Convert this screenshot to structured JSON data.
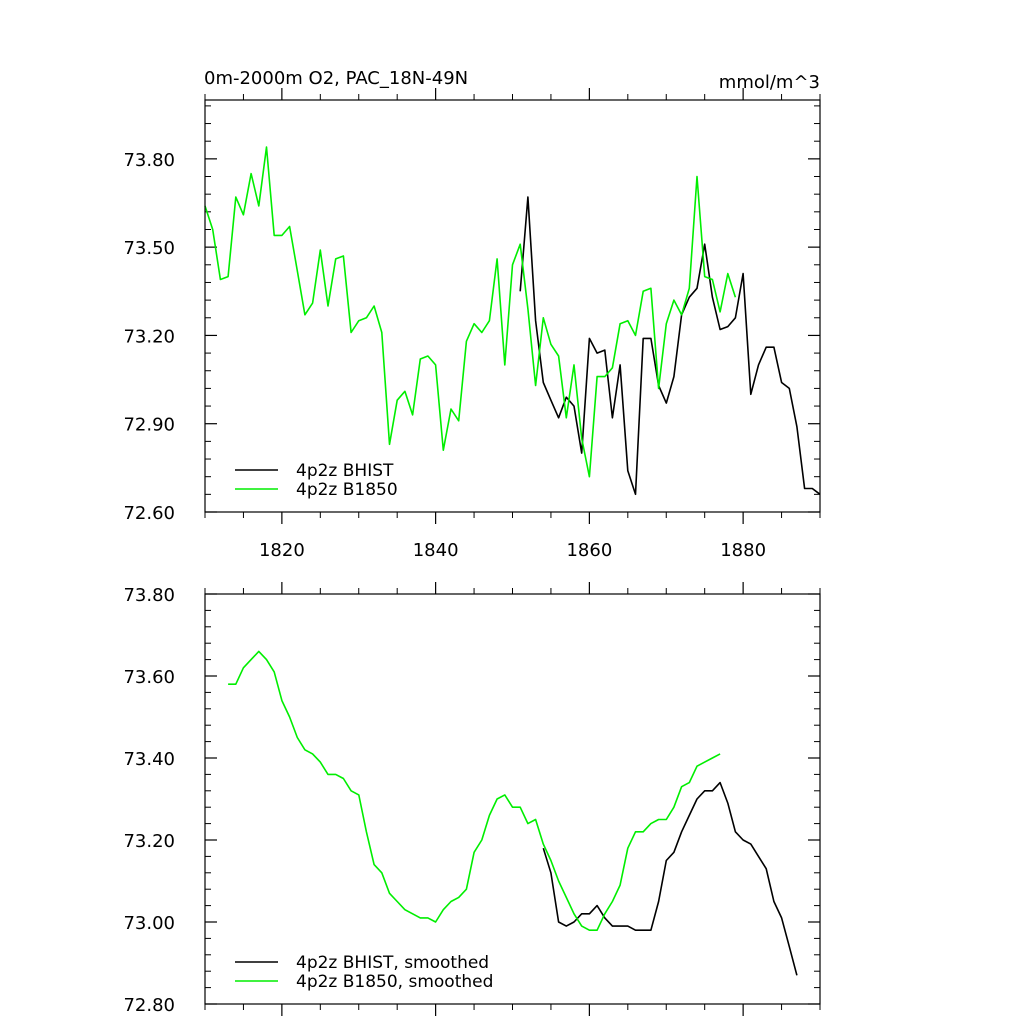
{
  "chart_data": [
    {
      "type": "line",
      "title_left": "0m-2000m O2, PAC_18N-49N",
      "title_right": "mmol/m^3",
      "xlim": [
        1810,
        1890
      ],
      "ylim": [
        72.6,
        74.0
      ],
      "yticks": [
        72.6,
        72.9,
        73.2,
        73.5,
        73.8
      ],
      "ytick_labels": [
        "72.60",
        "72.90",
        "73.20",
        "73.50",
        "73.80"
      ],
      "xticks": [
        1820,
        1840,
        1860,
        1880
      ],
      "xtick_labels": [
        "1820",
        "1840",
        "1860",
        "1880"
      ],
      "legend_position": "bottom-left",
      "series": [
        {
          "name": "4p2z BHIST",
          "color": "#000000",
          "x": [
            1851,
            1852,
            1853,
            1854,
            1855,
            1856,
            1857,
            1858,
            1859,
            1860,
            1861,
            1862,
            1863,
            1864,
            1865,
            1866,
            1867,
            1868,
            1869,
            1870,
            1871,
            1872,
            1873,
            1874,
            1875,
            1876,
            1877,
            1878,
            1879,
            1880,
            1881,
            1882,
            1883,
            1884,
            1885,
            1886,
            1887,
            1888,
            1889,
            1890
          ],
          "values": [
            73.35,
            73.67,
            73.25,
            73.04,
            72.98,
            72.92,
            72.99,
            72.96,
            72.8,
            73.19,
            73.14,
            73.15,
            72.92,
            73.1,
            72.74,
            72.66,
            73.19,
            73.19,
            73.03,
            72.97,
            73.06,
            73.27,
            73.33,
            73.36,
            73.51,
            73.33,
            73.22,
            73.23,
            73.26,
            73.41,
            73.0,
            73.1,
            73.16,
            73.16,
            73.04,
            73.02,
            72.89,
            72.68,
            72.68,
            72.66
          ]
        },
        {
          "name": "4p2z B1850",
          "color": "#00ee00",
          "x": [
            1810,
            1811,
            1812,
            1813,
            1814,
            1815,
            1816,
            1817,
            1818,
            1819,
            1820,
            1821,
            1822,
            1823,
            1824,
            1825,
            1826,
            1827,
            1828,
            1829,
            1830,
            1831,
            1832,
            1833,
            1834,
            1835,
            1836,
            1837,
            1838,
            1839,
            1840,
            1841,
            1842,
            1843,
            1844,
            1845,
            1846,
            1847,
            1848,
            1849,
            1850,
            1851,
            1852,
            1853,
            1854,
            1855,
            1856,
            1857,
            1858,
            1859,
            1860,
            1861,
            1862,
            1863,
            1864,
            1865,
            1866,
            1867,
            1868,
            1869,
            1870,
            1871,
            1872,
            1873,
            1874,
            1875,
            1876,
            1877,
            1878,
            1879
          ],
          "values": [
            73.64,
            73.56,
            73.39,
            73.4,
            73.67,
            73.61,
            73.75,
            73.64,
            73.84,
            73.54,
            73.54,
            73.57,
            73.42,
            73.27,
            73.31,
            73.49,
            73.3,
            73.46,
            73.47,
            73.21,
            73.25,
            73.26,
            73.3,
            73.21,
            72.83,
            72.98,
            73.01,
            72.93,
            73.12,
            73.13,
            73.1,
            72.81,
            72.95,
            72.91,
            73.18,
            73.24,
            73.21,
            73.25,
            73.46,
            73.1,
            73.44,
            73.51,
            73.29,
            73.03,
            73.26,
            73.17,
            73.13,
            72.92,
            73.1,
            72.85,
            72.72,
            73.06,
            73.06,
            73.09,
            73.24,
            73.25,
            73.2,
            73.35,
            73.36,
            73.02,
            73.24,
            73.32,
            73.27,
            73.36,
            73.74,
            73.4,
            73.39,
            73.28,
            73.41,
            73.33
          ]
        }
      ]
    },
    {
      "type": "line",
      "xlim": [
        1810,
        1890
      ],
      "ylim": [
        72.8,
        73.8
      ],
      "yticks": [
        72.8,
        73.0,
        73.2,
        73.4,
        73.6,
        73.8
      ],
      "ytick_labels": [
        "72.80",
        "73.00",
        "73.20",
        "73.40",
        "73.60",
        "73.80"
      ],
      "xticks": [
        1820,
        1840,
        1860,
        1880
      ],
      "legend_position": "bottom-left",
      "series": [
        {
          "name": "4p2z BHIST, smoothed",
          "color": "#000000",
          "x": [
            1854,
            1855,
            1856,
            1857,
            1858,
            1859,
            1860,
            1861,
            1862,
            1863,
            1864,
            1865,
            1866,
            1867,
            1868,
            1869,
            1870,
            1871,
            1872,
            1873,
            1874,
            1875,
            1876,
            1877,
            1878,
            1879,
            1880,
            1881,
            1882,
            1883,
            1884,
            1885,
            1886,
            1887
          ],
          "values": [
            73.18,
            73.12,
            73.0,
            72.99,
            73.0,
            73.02,
            73.02,
            73.04,
            73.01,
            72.99,
            72.99,
            72.99,
            72.98,
            72.98,
            72.98,
            73.05,
            73.15,
            73.17,
            73.22,
            73.26,
            73.3,
            73.32,
            73.32,
            73.34,
            73.29,
            73.22,
            73.2,
            73.19,
            73.16,
            73.13,
            73.05,
            73.01,
            72.94,
            72.87
          ]
        },
        {
          "name": "4p2z B1850, smoothed",
          "color": "#00ee00",
          "x": [
            1813,
            1814,
            1815,
            1816,
            1817,
            1818,
            1819,
            1820,
            1821,
            1822,
            1823,
            1824,
            1825,
            1826,
            1827,
            1828,
            1829,
            1830,
            1831,
            1832,
            1833,
            1834,
            1835,
            1836,
            1837,
            1838,
            1839,
            1840,
            1841,
            1842,
            1843,
            1844,
            1845,
            1846,
            1847,
            1848,
            1849,
            1850,
            1851,
            1852,
            1853,
            1854,
            1855,
            1856,
            1857,
            1858,
            1859,
            1860,
            1861,
            1862,
            1863,
            1864,
            1865,
            1866,
            1867,
            1868,
            1869,
            1870,
            1871,
            1872,
            1873,
            1874,
            1875,
            1876,
            1877
          ],
          "values": [
            73.58,
            73.58,
            73.62,
            73.64,
            73.66,
            73.64,
            73.61,
            73.54,
            73.5,
            73.45,
            73.42,
            73.41,
            73.39,
            73.36,
            73.36,
            73.35,
            73.32,
            73.31,
            73.22,
            73.14,
            73.12,
            73.07,
            73.05,
            73.03,
            73.02,
            73.01,
            73.01,
            73.0,
            73.03,
            73.05,
            73.06,
            73.08,
            73.17,
            73.2,
            73.26,
            73.3,
            73.31,
            73.28,
            73.28,
            73.24,
            73.25,
            73.19,
            73.15,
            73.1,
            73.06,
            73.02,
            72.99,
            72.98,
            72.98,
            73.02,
            73.05,
            73.09,
            73.18,
            73.22,
            73.22,
            73.24,
            73.25,
            73.25,
            73.28,
            73.33,
            73.34,
            73.38,
            73.39,
            73.4,
            73.41
          ]
        }
      ]
    }
  ]
}
